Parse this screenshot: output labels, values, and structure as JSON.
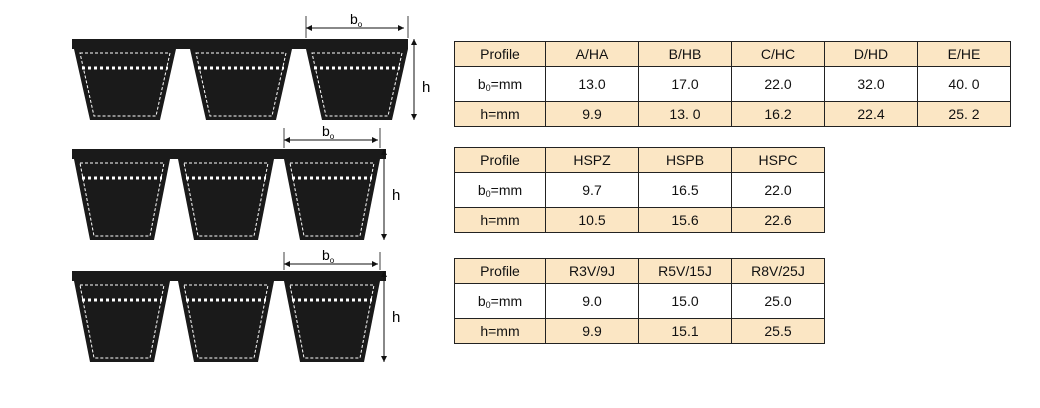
{
  "dim_labels": {
    "width": "b",
    "width_sub": "o",
    "height": "h"
  },
  "tables": [
    {
      "header_label": "Profile",
      "columns": [
        "A/HA",
        "B/HB",
        "C/HC",
        "D/HD",
        "E/HE"
      ],
      "rows": [
        {
          "label": "b",
          "label_sub": "0",
          "label_rest": "=mm",
          "values": [
            "13.0",
            "17.0",
            "22.0",
            "32.0",
            "40. 0"
          ]
        },
        {
          "label": "h=mm",
          "values": [
            "9.9",
            "13. 0",
            "16.2",
            "22.4",
            "25. 2"
          ]
        }
      ]
    },
    {
      "header_label": "Profile",
      "columns": [
        "HSPZ",
        "HSPB",
        "HSPC"
      ],
      "rows": [
        {
          "label": "b",
          "label_sub": "0",
          "label_rest": "=mm",
          "values": [
            "9.7",
            "16.5",
            "22.0"
          ]
        },
        {
          "label": "h=mm",
          "values": [
            "10.5",
            "15.6",
            "22.6"
          ]
        }
      ]
    },
    {
      "header_label": "Profile",
      "columns": [
        "R3V/9J",
        "R5V/15J",
        "R8V/25J"
      ],
      "rows": [
        {
          "label": "b",
          "label_sub": "0",
          "label_rest": "=mm",
          "values": [
            "9.0",
            "15.0",
            "25.0"
          ]
        },
        {
          "label": "h=mm",
          "values": [
            "9.9",
            "15.1",
            "25.5"
          ]
        }
      ]
    }
  ],
  "colors": {
    "belt": "#1a1a1a",
    "header_fill": "#fbe6c4",
    "row_h_fill": "#fbe6c4",
    "cord": "#ffffff"
  }
}
